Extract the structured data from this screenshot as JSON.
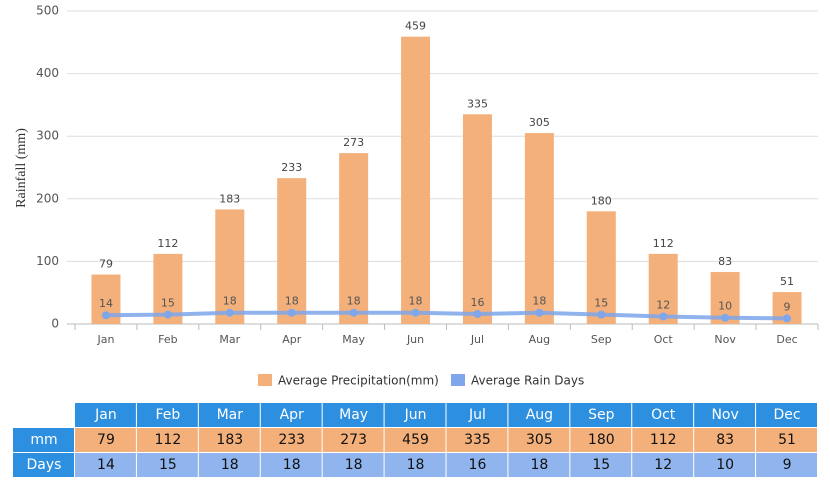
{
  "chart_data": {
    "type": "bar",
    "y_label": "Rainfall (mm)",
    "categories": [
      "Jan",
      "Feb",
      "Mar",
      "Apr",
      "May",
      "Jun",
      "Jul",
      "Aug",
      "Sep",
      "Oct",
      "Nov",
      "Dec"
    ],
    "series": [
      {
        "name": "Average Precipitation(mm)",
        "type": "bar",
        "color": "#f4b07a",
        "values": [
          79,
          112,
          183,
          233,
          273,
          459,
          335,
          305,
          180,
          112,
          83,
          51
        ]
      },
      {
        "name": "Average Rain Days",
        "type": "line",
        "color": "#7ea6ea",
        "values": [
          14,
          15,
          18,
          18,
          18,
          18,
          16,
          18,
          15,
          12,
          10,
          9
        ]
      }
    ],
    "ylim": [
      0,
      500
    ],
    "yticks": [
      0,
      100,
      200,
      300,
      400,
      500
    ],
    "grid": true
  },
  "table": {
    "row_labels": [
      "mm",
      "Days"
    ]
  }
}
